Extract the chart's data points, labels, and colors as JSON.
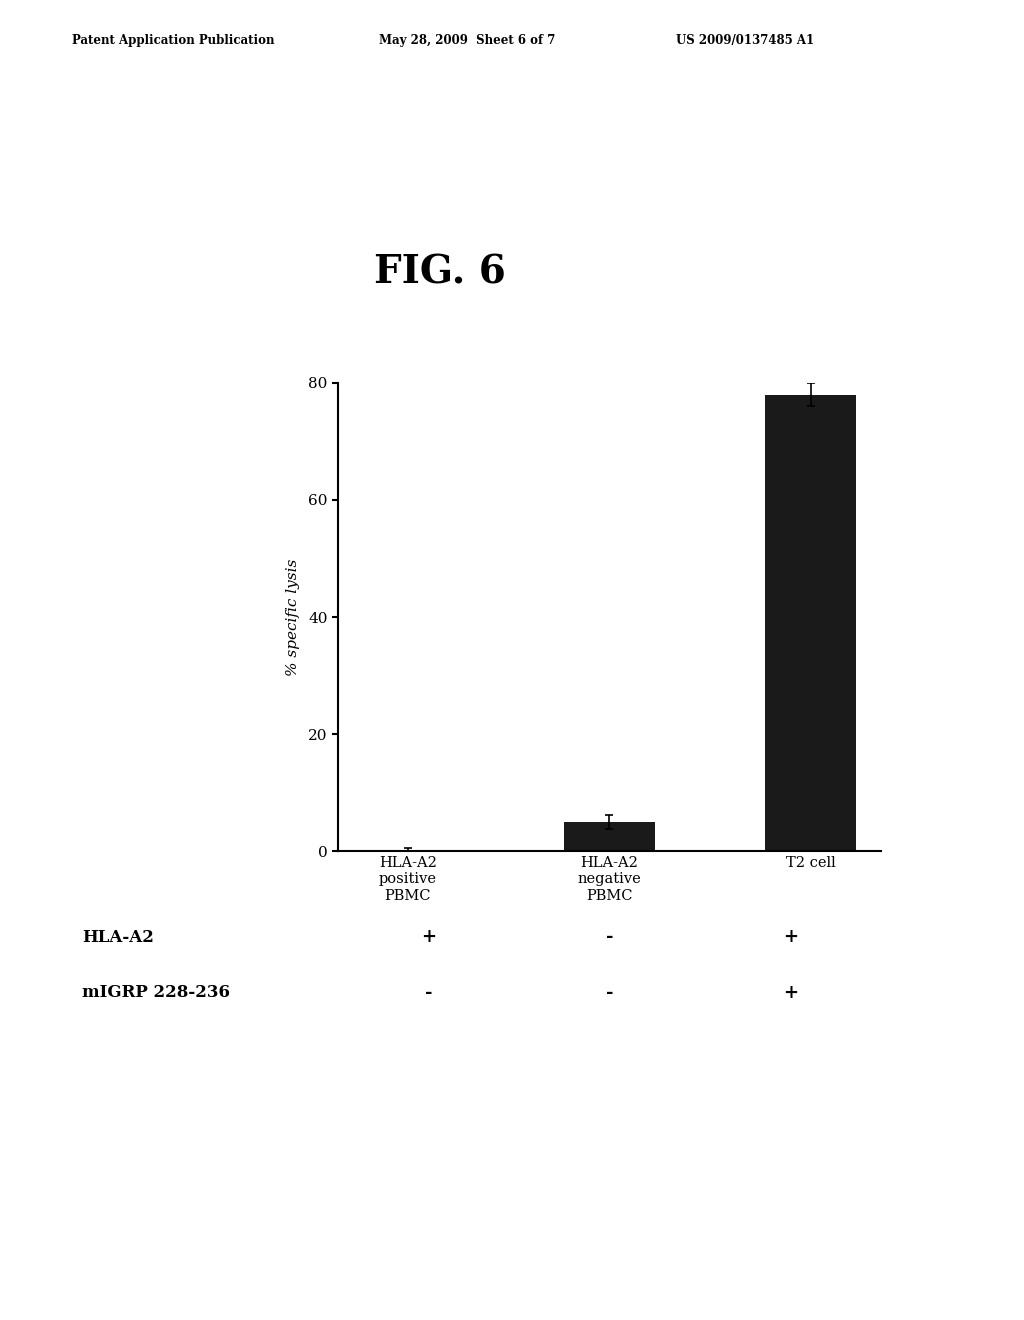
{
  "fig_title": "FIG. 6",
  "header_left": "Patent Application Publication",
  "header_center": "May 28, 2009  Sheet 6 of 7",
  "header_right": "US 2009/0137485 A1",
  "categories": [
    "HLA-A2\npositive\nPBMC",
    "HLA-A2\nnegative\nPBMC",
    "T2 cell"
  ],
  "values": [
    0.3,
    5.0,
    78.0
  ],
  "errors": [
    0.3,
    1.2,
    2.0
  ],
  "bar_color": "#1a1a1a",
  "bar_width": 0.45,
  "ylabel": "% specific lysis",
  "ylim": [
    0,
    80
  ],
  "yticks": [
    0,
    20,
    40,
    60,
    80
  ],
  "background_color": "#ffffff",
  "table_row1_label": "HLA-A2",
  "table_row2_label": "mIGRP 228-236",
  "table_row1_values": [
    "+",
    "-",
    "+"
  ],
  "table_row2_values": [
    "-",
    "-",
    "+"
  ]
}
